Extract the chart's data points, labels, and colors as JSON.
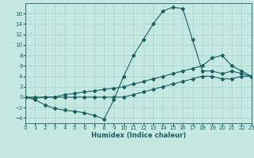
{
  "xlabel": "Humidex (Indice chaleur)",
  "background_color": "#c5e8e3",
  "grid_color": "#a8d5ce",
  "line_color": "#1a6060",
  "xlim": [
    0,
    23
  ],
  "ylim": [
    -5,
    18
  ],
  "xticks": [
    0,
    1,
    2,
    3,
    4,
    5,
    6,
    7,
    8,
    9,
    10,
    11,
    12,
    13,
    14,
    15,
    16,
    17,
    18,
    19,
    20,
    21,
    22,
    23
  ],
  "yticks": [
    -4,
    -2,
    0,
    2,
    4,
    6,
    8,
    10,
    12,
    14,
    16
  ],
  "curve1_x": [
    0,
    1,
    2,
    3,
    4,
    5,
    6,
    7,
    8,
    9,
    10,
    11,
    12,
    13,
    14,
    15,
    16,
    17,
    18,
    19,
    20,
    21,
    22,
    23
  ],
  "curve1_y": [
    0,
    -0.5,
    -1.5,
    -2.2,
    -2.5,
    -2.7,
    -3.0,
    -3.5,
    -4.2,
    -0.5,
    4.0,
    8.0,
    11.0,
    14.0,
    16.5,
    17.2,
    17.0,
    11.0,
    5.0,
    5.0,
    4.5,
    5.0,
    4.5,
    4.0
  ],
  "curve2_x": [
    0,
    1,
    2,
    3,
    4,
    5,
    6,
    7,
    8,
    9,
    10,
    11,
    12,
    13,
    14,
    15,
    16,
    17,
    18,
    19,
    20,
    21,
    22,
    23
  ],
  "curve2_y": [
    0,
    -0.2,
    0,
    0,
    0.5,
    0.7,
    1.0,
    1.2,
    1.5,
    1.7,
    2.0,
    2.5,
    3.0,
    3.5,
    4.0,
    4.5,
    5.0,
    5.5,
    6.0,
    7.5,
    8.0,
    6.0,
    5.0,
    4.0
  ],
  "curve3_x": [
    0,
    1,
    2,
    3,
    4,
    5,
    6,
    7,
    8,
    9,
    10,
    11,
    12,
    13,
    14,
    15,
    16,
    17,
    18,
    19,
    20,
    21,
    22,
    23
  ],
  "curve3_y": [
    0,
    0,
    0,
    0,
    0,
    0,
    0,
    0,
    0,
    0,
    0,
    0.5,
    1.0,
    1.5,
    2.0,
    2.5,
    3.0,
    3.5,
    4.0,
    4.0,
    3.5,
    3.5,
    4.0,
    4.0
  ],
  "tick_fontsize": 5.0,
  "xlabel_fontsize": 6.0,
  "marker_size": 2.0,
  "line_width": 0.8
}
